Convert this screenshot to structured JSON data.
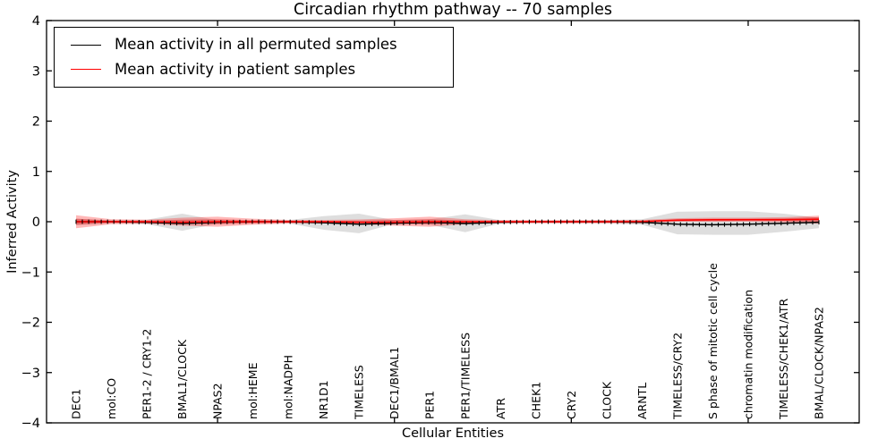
{
  "chart_data": {
    "type": "line",
    "title": "Circadian rhythm pathway -- 70 samples",
    "xlabel": "Cellular Entities",
    "ylabel": "Inferred Activity",
    "ylim": [
      -4,
      4
    ],
    "ytick_values": [
      -4,
      -3,
      -2,
      -1,
      0,
      1,
      2,
      3,
      4
    ],
    "ytick_labels": [
      "−4",
      "−3",
      "−2",
      "−1",
      "0",
      "1",
      "2",
      "3",
      "4"
    ],
    "grid": false,
    "legend_position": "upper left",
    "categories": [
      "DEC1",
      "mol:CO",
      "PER1-2 / CRY1-2",
      "BMAL1/CLOCK",
      "NPAS2",
      "mol:HEME",
      "mol:NADPH",
      "NR1D1",
      "TIMELESS",
      "DEC1/BMAL1",
      "PER1",
      "PER1/TIMELESS",
      "ATR",
      "CHEK1",
      "CRY2",
      "CLOCK",
      "ARNTL",
      "TIMELESS/CRY2",
      "S phase of mitotic cell cycle",
      "chromatin modification",
      "TIMELESS/CHEK1/ATR",
      "BMAL/CLOCK/NPAS2"
    ],
    "xtick_category_numbers": [
      5,
      10,
      15,
      20
    ],
    "series": [
      {
        "name": "Mean activity in all permuted samples",
        "color": "#000000",
        "values": [
          0,
          0,
          -0.01,
          -0.035,
          -0.01,
          0,
          0,
          -0.02,
          -0.05,
          -0.03,
          -0.015,
          -0.035,
          -0.01,
          0,
          0,
          0,
          -0.01,
          -0.05,
          -0.06,
          -0.05,
          -0.03,
          -0.01
        ]
      },
      {
        "name": "Mean activity in patient samples",
        "color": "#ff0000",
        "values": [
          0,
          0,
          0,
          -0.01,
          0,
          0,
          0,
          0,
          -0.01,
          -0.01,
          0,
          0,
          0,
          0,
          0,
          0,
          0.005,
          0.03,
          0.04,
          0.04,
          0.04,
          0.05
        ]
      }
    ],
    "bands": [
      {
        "name": "permuted-samples-range",
        "color": "rgba(0,0,0,0.13)",
        "upper": [
          0.06,
          0.03,
          0.04,
          0.16,
          0.03,
          0.02,
          0.03,
          0.11,
          0.16,
          0.03,
          0.05,
          0.145,
          0.03,
          0.025,
          0.025,
          0.03,
          0.05,
          0.2,
          0.21,
          0.21,
          0.16,
          0.08
        ],
        "lower": [
          -0.07,
          -0.03,
          -0.05,
          -0.18,
          -0.04,
          -0.03,
          -0.03,
          -0.16,
          -0.23,
          -0.04,
          -0.06,
          -0.21,
          -0.03,
          -0.03,
          -0.03,
          -0.035,
          -0.06,
          -0.25,
          -0.26,
          -0.26,
          -0.2,
          -0.13
        ]
      },
      {
        "name": "patient-samples-range-outer",
        "color": "rgba(255,0,0,0.28)",
        "upper": [
          0.13,
          0.05,
          0.04,
          0.08,
          0.1,
          0.06,
          0.035,
          0.035,
          0.045,
          0.07,
          0.1,
          0.05,
          0.03,
          0.03,
          0.03,
          0.03,
          0.035,
          0.07,
          0.08,
          0.08,
          0.09,
          0.12
        ],
        "lower": [
          -0.13,
          -0.05,
          -0.04,
          -0.08,
          -0.1,
          -0.06,
          -0.035,
          -0.035,
          -0.05,
          -0.08,
          -0.1,
          -0.05,
          -0.03,
          -0.03,
          -0.03,
          -0.03,
          -0.03,
          0.0,
          0.0,
          0.0,
          -0.01,
          -0.04
        ]
      },
      {
        "name": "patient-samples-range-inner",
        "color": "rgba(220,0,0,0.35)",
        "upper": [
          0.06,
          0.02,
          0.02,
          0.04,
          0.05,
          0.03,
          0.018,
          0.018,
          0.02,
          0.035,
          0.05,
          0.025,
          0.015,
          0.015,
          0.015,
          0.015,
          0.018,
          0.05,
          0.055,
          0.06,
          0.065,
          0.09
        ],
        "lower": [
          -0.06,
          -0.02,
          -0.02,
          -0.04,
          -0.05,
          -0.03,
          -0.018,
          -0.018,
          -0.025,
          -0.04,
          -0.05,
          -0.025,
          -0.015,
          -0.015,
          -0.015,
          -0.015,
          -0.015,
          0.01,
          0.015,
          0.02,
          0.015,
          0.0
        ]
      }
    ],
    "legend": {
      "entries": [
        {
          "label": "Mean activity in all permuted samples",
          "color": "#000000"
        },
        {
          "label": "Mean activity in patient samples",
          "color": "#ff0000"
        }
      ]
    }
  }
}
